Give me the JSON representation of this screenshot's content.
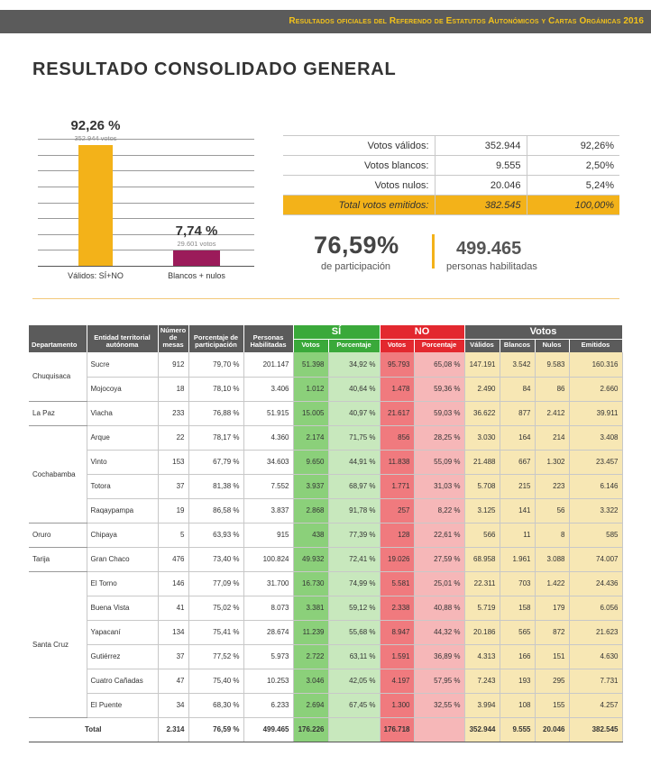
{
  "header": {
    "title": "Resultados oficiales del Referendo de Estatutos Autonómicos y Cartas Orgánicas 2016"
  },
  "page_title": "RESULTADO CONSOLIDADO GENERAL",
  "chart_data": {
    "type": "bar",
    "categories": [
      "Válidos: SÍ+NO",
      "Blancos + nulos"
    ],
    "values": [
      92.26,
      7.74
    ],
    "value_labels": [
      "92,26 %",
      "7,74 %"
    ],
    "sub_labels": [
      "352.944 votos",
      "29.601 votos"
    ],
    "colors": [
      "#f3b219",
      "#9b1b5a"
    ],
    "ylim": [
      0,
      100
    ],
    "grid": true
  },
  "summary": {
    "rows": [
      {
        "label": "Votos válidos:",
        "value": "352.944",
        "pct": "92,26%"
      },
      {
        "label": "Votos blancos:",
        "value": "9.555",
        "pct": "2,50%"
      },
      {
        "label": "Votos nulos:",
        "value": "20.046",
        "pct": "5,24%"
      },
      {
        "label": "Total votos emitidos:",
        "value": "382.545",
        "pct": "100,00%"
      }
    ]
  },
  "participation": {
    "pct": "76,59%",
    "label": "de participación"
  },
  "habilitadas": {
    "value": "499.465",
    "label": "personas habilitadas"
  },
  "table": {
    "group_headers": {
      "si": "SÍ",
      "no": "NO",
      "votos": "Votos"
    },
    "headers": {
      "departamento": "Departamento",
      "entidad": "Entidad territorial autónoma",
      "mesas": "Número de mesas",
      "participacion": "Porcentaje de participación",
      "habilitadas": "Personas Habilitadas",
      "si_votos": "Votos",
      "si_pct": "Porcentaje",
      "no_votos": "Votos",
      "no_pct": "Porcentaje",
      "validos": "Válidos",
      "blancos": "Blancos",
      "nulos": "Nulos",
      "emitidos": "Emitidos"
    },
    "departments": [
      {
        "name": "Chuquisaca",
        "rows": [
          [
            "Sucre",
            "912",
            "79,70 %",
            "201.147",
            "51.398",
            "34,92 %",
            "95.793",
            "65,08 %",
            "147.191",
            "3.542",
            "9.583",
            "160.316"
          ],
          [
            "Mojocoya",
            "18",
            "78,10 %",
            "3.406",
            "1.012",
            "40,64 %",
            "1.478",
            "59,36 %",
            "2.490",
            "84",
            "86",
            "2.660"
          ]
        ]
      },
      {
        "name": "La Paz",
        "rows": [
          [
            "Viacha",
            "233",
            "76,88 %",
            "51.915",
            "15.005",
            "40,97 %",
            "21.617",
            "59,03 %",
            "36.622",
            "877",
            "2.412",
            "39.911"
          ]
        ]
      },
      {
        "name": "Cochabamba",
        "rows": [
          [
            "Arque",
            "22",
            "78,17 %",
            "4.360",
            "2.174",
            "71,75 %",
            "856",
            "28,25 %",
            "3.030",
            "164",
            "214",
            "3.408"
          ],
          [
            "Vinto",
            "153",
            "67,79 %",
            "34.603",
            "9.650",
            "44,91 %",
            "11.838",
            "55,09 %",
            "21.488",
            "667",
            "1.302",
            "23.457"
          ],
          [
            "Totora",
            "37",
            "81,38 %",
            "7.552",
            "3.937",
            "68,97 %",
            "1.771",
            "31,03 %",
            "5.708",
            "215",
            "223",
            "6.146"
          ],
          [
            "Raqaypampa",
            "19",
            "86,58 %",
            "3.837",
            "2.868",
            "91,78 %",
            "257",
            "8,22 %",
            "3.125",
            "141",
            "56",
            "3.322"
          ]
        ]
      },
      {
        "name": "Oruro",
        "rows": [
          [
            "Chipaya",
            "5",
            "63,93 %",
            "915",
            "438",
            "77,39 %",
            "128",
            "22,61 %",
            "566",
            "11",
            "8",
            "585"
          ]
        ]
      },
      {
        "name": "Tarija",
        "rows": [
          [
            "Gran Chaco",
            "476",
            "73,40 %",
            "100.824",
            "49.932",
            "72,41 %",
            "19.026",
            "27,59 %",
            "68.958",
            "1.961",
            "3.088",
            "74.007"
          ]
        ]
      },
      {
        "name": "Santa Cruz",
        "rows": [
          [
            "El Torno",
            "146",
            "77,09 %",
            "31.700",
            "16.730",
            "74,99 %",
            "5.581",
            "25,01 %",
            "22.311",
            "703",
            "1.422",
            "24.436"
          ],
          [
            "Buena Vista",
            "41",
            "75,02 %",
            "8.073",
            "3.381",
            "59,12 %",
            "2.338",
            "40,88 %",
            "5.719",
            "158",
            "179",
            "6.056"
          ],
          [
            "Yapacaní",
            "134",
            "75,41 %",
            "28.674",
            "11.239",
            "55,68 %",
            "8.947",
            "44,32 %",
            "20.186",
            "565",
            "872",
            "21.623"
          ],
          [
            "Gutiérrez",
            "37",
            "77,52 %",
            "5.973",
            "2.722",
            "63,11 %",
            "1.591",
            "36,89 %",
            "4.313",
            "166",
            "151",
            "4.630"
          ],
          [
            "Cuatro Cañadas",
            "47",
            "75,40 %",
            "10.253",
            "3.046",
            "42,05 %",
            "4.197",
            "57,95 %",
            "7.243",
            "193",
            "295",
            "7.731"
          ],
          [
            "El Puente",
            "34",
            "68,30 %",
            "6.233",
            "2.694",
            "67,45 %",
            "1.300",
            "32,55 %",
            "3.994",
            "108",
            "155",
            "4.257"
          ]
        ]
      }
    ],
    "total": [
      "Total",
      "2.314",
      "76,59 %",
      "499.465",
      "176.226",
      "",
      "176.718",
      "",
      "352.944",
      "9.555",
      "20.046",
      "382.545"
    ]
  }
}
